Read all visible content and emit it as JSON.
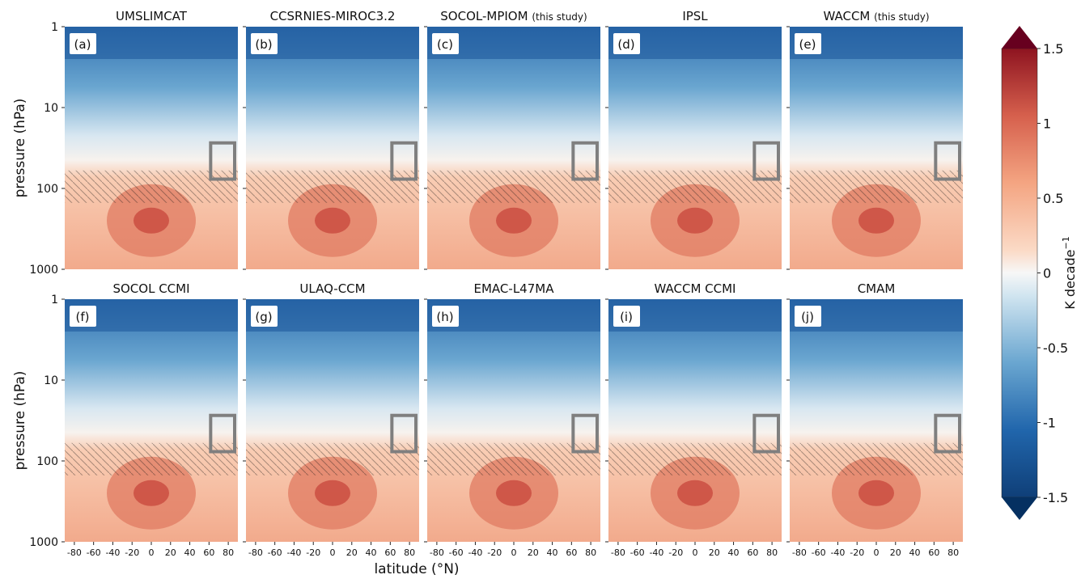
{
  "chart_data": {
    "type": "heatmap",
    "xlabel": "latitude (°N)",
    "ylabel": "pressure (hPa)",
    "xlim": [
      -90,
      90
    ],
    "ylim": [
      1000,
      1
    ],
    "y_scale": "log",
    "x_ticks": [
      "-80",
      "-60",
      "-40",
      "-20",
      "0",
      "20",
      "40",
      "60",
      "80"
    ],
    "y_ticks": [
      "1",
      "10",
      "100",
      "1000"
    ],
    "colorbar": {
      "label": "K decade",
      "label_sup": "−1",
      "range": [
        -1.5,
        1.5
      ],
      "ticks": [
        "1.5",
        "1",
        "0.5",
        "0",
        "-0.5",
        "-1",
        "-1.5"
      ],
      "extend": "both"
    },
    "box_region": {
      "lat": [
        60,
        90
      ],
      "pressure_hPa": [
        30,
        70
      ]
    },
    "panels": [
      {
        "letter": "(a)",
        "title": "UMSLIMCAT",
        "subtitle": ""
      },
      {
        "letter": "(b)",
        "title": "CCSRNIES-MIROC3.2",
        "subtitle": ""
      },
      {
        "letter": "(c)",
        "title": "SOCOL-MPIOM",
        "subtitle": "(this study)"
      },
      {
        "letter": "(d)",
        "title": "IPSL",
        "subtitle": ""
      },
      {
        "letter": "(e)",
        "title": "WACCM",
        "subtitle": "(this study)"
      },
      {
        "letter": "(f)",
        "title": "SOCOL CCMI",
        "subtitle": ""
      },
      {
        "letter": "(g)",
        "title": "ULAQ-CCM",
        "subtitle": ""
      },
      {
        "letter": "(h)",
        "title": "EMAC-L47MA",
        "subtitle": ""
      },
      {
        "letter": "(i)",
        "title": "WACCM CCMI",
        "subtitle": ""
      },
      {
        "letter": "(j)",
        "title": "CMAM",
        "subtitle": ""
      }
    ]
  }
}
